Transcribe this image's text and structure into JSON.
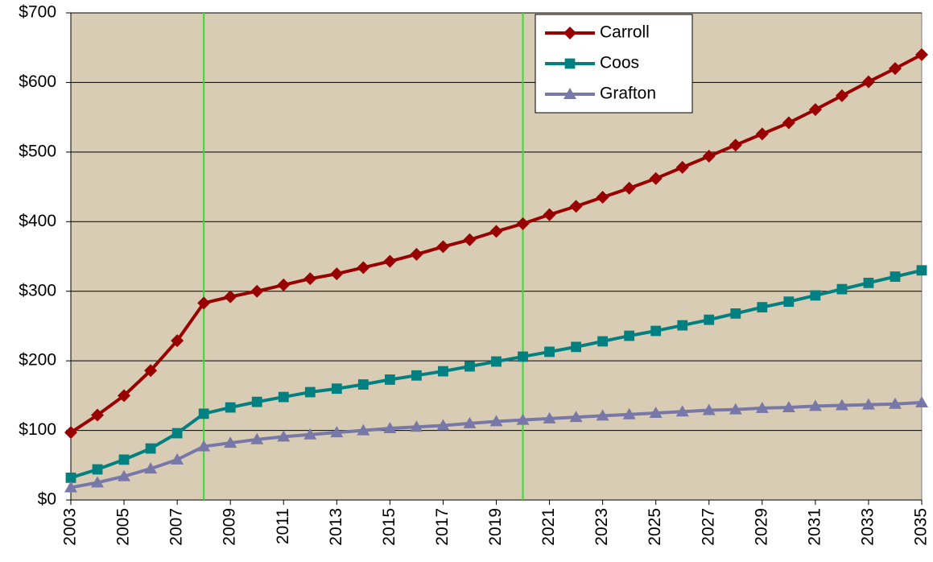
{
  "chart_data": {
    "type": "line",
    "x": [
      2003,
      2004,
      2005,
      2006,
      2007,
      2008,
      2009,
      2010,
      2011,
      2012,
      2013,
      2014,
      2015,
      2016,
      2017,
      2018,
      2019,
      2020,
      2021,
      2022,
      2023,
      2024,
      2025,
      2026,
      2027,
      2028,
      2029,
      2030,
      2031,
      2032,
      2033,
      2034,
      2035
    ],
    "series": [
      {
        "name": "Carroll",
        "color": "#990000",
        "marker": "diamond",
        "values": [
          97,
          122,
          150,
          186,
          229,
          283,
          292,
          300,
          309,
          318,
          325,
          334,
          343,
          353,
          364,
          374,
          386,
          397,
          410,
          422,
          435,
          448,
          462,
          478,
          494,
          510,
          526,
          542,
          561,
          581,
          601,
          620,
          640
        ]
      },
      {
        "name": "Coos",
        "color": "#008080",
        "marker": "square",
        "values": [
          32,
          44,
          58,
          74,
          96,
          124,
          133,
          141,
          148,
          155,
          160,
          166,
          173,
          179,
          185,
          192,
          199,
          206,
          213,
          220,
          228,
          236,
          243,
          251,
          259,
          268,
          277,
          285,
          294,
          303,
          312,
          321,
          330
        ]
      },
      {
        "name": "Grafton",
        "color": "#7878a8",
        "marker": "triangle",
        "values": [
          18,
          25,
          34,
          45,
          58,
          77,
          82,
          87,
          91,
          94,
          97,
          100,
          103,
          105,
          107,
          110,
          113,
          115,
          117,
          119,
          121,
          123,
          125,
          127,
          129,
          130,
          132,
          133,
          135,
          136,
          137,
          138,
          140
        ]
      }
    ],
    "xlim": [
      2003,
      2035
    ],
    "xticks": [
      2003,
      2005,
      2007,
      2009,
      2011,
      2013,
      2015,
      2017,
      2019,
      2021,
      2023,
      2025,
      2027,
      2029,
      2031,
      2033,
      2035
    ],
    "ylim": [
      0,
      700
    ],
    "yticks": [
      {
        "value": 0,
        "label": "$0"
      },
      {
        "value": 100,
        "label": "$100"
      },
      {
        "value": 200,
        "label": "$200"
      },
      {
        "value": 300,
        "label": "$300"
      },
      {
        "value": 400,
        "label": "$400"
      },
      {
        "value": 500,
        "label": "$500"
      },
      {
        "value": 600,
        "label": "$600"
      },
      {
        "value": 700,
        "label": "$700"
      }
    ],
    "vlines": [
      2008,
      2020
    ],
    "vline_color": "#33dd33",
    "grid": true,
    "legend": "top-right",
    "background": "#d9ccb4"
  }
}
